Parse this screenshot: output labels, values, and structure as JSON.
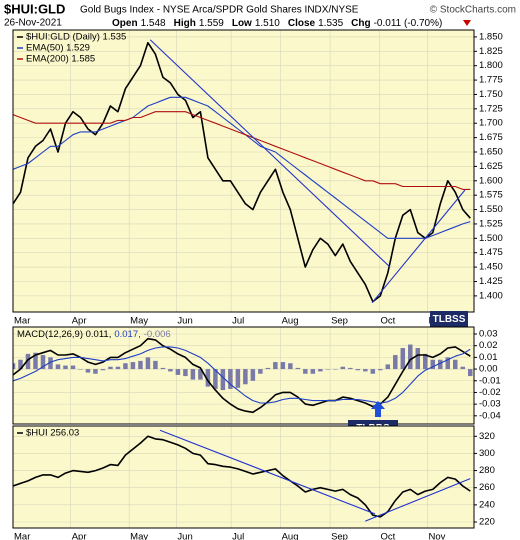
{
  "header": {
    "symbol": "$HUI:GLD",
    "description": "Gold Bugs Index - NYSE Arca/SPDR Gold Shares INDX/NYSE",
    "source": "© StockCharts.com",
    "date": "26-Nov-2021",
    "quote": [
      {
        "label": "Open",
        "value": "1.548"
      },
      {
        "label": "High",
        "value": "1.559"
      },
      {
        "label": "Low",
        "value": "1.510"
      },
      {
        "label": "Close",
        "value": "1.535"
      },
      {
        "label": "Chg",
        "value": "-0.011 (-0.70%)"
      }
    ]
  },
  "chart_data": [
    {
      "type": "line",
      "background": "#fbf8cc",
      "grid": true,
      "x": [
        0,
        1,
        2,
        3,
        4,
        5,
        6,
        7,
        8,
        9,
        10,
        11,
        12,
        13,
        14,
        15,
        16,
        17,
        18,
        19,
        20,
        21,
        22,
        23,
        24,
        25,
        26,
        27,
        28,
        29,
        30,
        31,
        32,
        33,
        34,
        35,
        36,
        37,
        38,
        39,
        40,
        41,
        42,
        43,
        44,
        45,
        46,
        47,
        48,
        49,
        50,
        51,
        52,
        53,
        54,
        55,
        56,
        57,
        58,
        59,
        60,
        61
      ],
      "xlim": [
        0,
        61.5
      ],
      "xticks": [
        {
          "value": 0,
          "label": "Mar"
        },
        {
          "value": 7.7,
          "label": "Apr"
        },
        {
          "value": 15.5,
          "label": "May"
        },
        {
          "value": 21.8,
          "label": "Jun"
        },
        {
          "value": 29.1,
          "label": "Jul"
        },
        {
          "value": 35.7,
          "label": "Aug"
        },
        {
          "value": 42.3,
          "label": "Sep"
        },
        {
          "value": 48.9,
          "label": "Oct"
        },
        {
          "value": 55.3,
          "label": "Nov"
        }
      ],
      "ylim": [
        1.372,
        1.862
      ],
      "yticks": [
        {
          "value": 1.4,
          "label": "1.400"
        },
        {
          "value": 1.425,
          "label": "1.425"
        },
        {
          "value": 1.45,
          "label": "1.450"
        },
        {
          "value": 1.475,
          "label": "1.475"
        },
        {
          "value": 1.5,
          "label": "1.500"
        },
        {
          "value": 1.525,
          "label": "1.525"
        },
        {
          "value": 1.55,
          "label": "1.550"
        },
        {
          "value": 1.575,
          "label": "1.575"
        },
        {
          "value": 1.6,
          "label": "1.600"
        },
        {
          "value": 1.625,
          "label": "1.625"
        },
        {
          "value": 1.65,
          "label": "1.650"
        },
        {
          "value": 1.675,
          "label": "1.675"
        },
        {
          "value": 1.7,
          "label": "1.700"
        },
        {
          "value": 1.725,
          "label": "1.725"
        },
        {
          "value": 1.75,
          "label": "1.750"
        },
        {
          "value": 1.775,
          "label": "1.775"
        },
        {
          "value": 1.8,
          "label": "1.800"
        },
        {
          "value": 1.825,
          "label": "1.825"
        },
        {
          "value": 1.85,
          "label": "1.850"
        }
      ],
      "series": [
        {
          "name": "$HUI:GLD (Daily) 1.535",
          "color": "#000000",
          "values": [
            1.56,
            1.58,
            1.64,
            1.66,
            1.67,
            1.69,
            1.65,
            1.7,
            1.72,
            1.71,
            1.69,
            1.68,
            1.7,
            1.73,
            1.72,
            1.76,
            1.78,
            1.8,
            1.84,
            1.82,
            1.78,
            1.77,
            1.75,
            1.74,
            1.71,
            1.72,
            1.64,
            1.62,
            1.6,
            1.6,
            1.58,
            1.56,
            1.55,
            1.58,
            1.6,
            1.62,
            1.58,
            1.55,
            1.5,
            1.45,
            1.48,
            1.5,
            1.49,
            1.47,
            1.49,
            1.46,
            1.44,
            1.42,
            1.39,
            1.4,
            1.44,
            1.5,
            1.54,
            1.55,
            1.51,
            1.5,
            1.51,
            1.56,
            1.6,
            1.58,
            1.55,
            1.535
          ]
        },
        {
          "name": "EMA(50) 1.529",
          "color": "#1f3fc4",
          "values": [
            1.62,
            1.625,
            1.63,
            1.64,
            1.65,
            1.66,
            1.66,
            1.67,
            1.68,
            1.685,
            1.685,
            1.685,
            1.69,
            1.695,
            1.7,
            1.705,
            1.71,
            1.72,
            1.73,
            1.735,
            1.74,
            1.745,
            1.745,
            1.745,
            1.74,
            1.735,
            1.73,
            1.72,
            1.71,
            1.7,
            1.69,
            1.68,
            1.67,
            1.66,
            1.655,
            1.65,
            1.64,
            1.63,
            1.62,
            1.61,
            1.6,
            1.59,
            1.58,
            1.57,
            1.56,
            1.55,
            1.54,
            1.53,
            1.52,
            1.51,
            1.5,
            1.5,
            1.5,
            1.5,
            1.5,
            1.5,
            1.505,
            1.51,
            1.515,
            1.52,
            1.525,
            1.529
          ]
        },
        {
          "name": "EMA(200) 1.585",
          "color": "#b01010",
          "values": [
            1.715,
            1.71,
            1.705,
            1.7,
            1.7,
            1.7,
            1.7,
            1.7,
            1.7,
            1.7,
            1.7,
            1.7,
            1.7,
            1.7,
            1.705,
            1.705,
            1.71,
            1.71,
            1.715,
            1.72,
            1.72,
            1.72,
            1.72,
            1.72,
            1.715,
            1.71,
            1.705,
            1.7,
            1.695,
            1.69,
            1.685,
            1.68,
            1.675,
            1.67,
            1.665,
            1.66,
            1.655,
            1.65,
            1.645,
            1.64,
            1.635,
            1.63,
            1.625,
            1.62,
            1.615,
            1.61,
            1.605,
            1.6,
            1.6,
            1.595,
            1.595,
            1.595,
            1.59,
            1.59,
            1.59,
            1.59,
            1.59,
            1.59,
            1.59,
            1.59,
            1.585,
            1.585
          ]
        }
      ],
      "trendlines": [
        {
          "color": "#2233cc",
          "x": [
            18.3,
            50.3
          ],
          "values": [
            1.845,
            1.45
          ]
        },
        {
          "color": "#2233cc",
          "x": [
            47.9,
            60.3
          ],
          "values": [
            1.388,
            1.584
          ]
        }
      ],
      "annotations": [
        {
          "text": "TLBSS"
        }
      ]
    },
    {
      "type": "macd",
      "background": "#fbf8cc",
      "grid": true,
      "x": [
        0,
        1,
        2,
        3,
        4,
        5,
        6,
        7,
        8,
        9,
        10,
        11,
        12,
        13,
        14,
        15,
        16,
        17,
        18,
        19,
        20,
        21,
        22,
        23,
        24,
        25,
        26,
        27,
        28,
        29,
        30,
        31,
        32,
        33,
        34,
        35,
        36,
        37,
        38,
        39,
        40,
        41,
        42,
        43,
        44,
        45,
        46,
        47,
        48,
        49,
        50,
        51,
        52,
        53,
        54,
        55,
        56,
        57,
        58,
        59,
        60,
        61
      ],
      "xlim": [
        0,
        61.5
      ],
      "xticks": [
        {
          "value": 0,
          "label": "Mar"
        },
        {
          "value": 7.7,
          "label": "Apr"
        },
        {
          "value": 15.5,
          "label": "May"
        },
        {
          "value": 21.8,
          "label": "Jun"
        },
        {
          "value": 29.1,
          "label": "Jul"
        },
        {
          "value": 35.7,
          "label": "Aug"
        },
        {
          "value": 42.3,
          "label": "Sep"
        },
        {
          "value": 48.9,
          "label": "Oct"
        },
        {
          "value": 55.3,
          "label": "Nov"
        }
      ],
      "ylim": [
        -0.047,
        0.036
      ],
      "yticks": [
        {
          "value": -0.04,
          "label": "-0.04"
        },
        {
          "value": -0.03,
          "label": "-0.03"
        },
        {
          "value": -0.02,
          "label": "-0.02"
        },
        {
          "value": -0.01,
          "label": "-0.01"
        },
        {
          "value": 0,
          "label": "0.00"
        },
        {
          "value": 0.01,
          "label": "0.01"
        },
        {
          "value": 0.02,
          "label": "0.02"
        },
        {
          "value": 0.03,
          "label": "0.03"
        }
      ],
      "legend": [
        "MACD(12,26,9) 0.011,",
        "0.017,",
        "-0.006"
      ],
      "series": [
        {
          "kind": "line",
          "color": "#000000",
          "values": [
            -0.005,
            0,
            0.008,
            0.012,
            0.014,
            0.016,
            0.012,
            0.012,
            0.013,
            0.01,
            0.006,
            0.004,
            0.006,
            0.01,
            0.01,
            0.014,
            0.017,
            0.02,
            0.026,
            0.025,
            0.02,
            0.017,
            0.013,
            0.01,
            0.004,
            0.001,
            -0.01,
            -0.018,
            -0.025,
            -0.03,
            -0.034,
            -0.036,
            -0.037,
            -0.033,
            -0.028,
            -0.022,
            -0.02,
            -0.02,
            -0.024,
            -0.03,
            -0.031,
            -0.029,
            -0.027,
            -0.027,
            -0.024,
            -0.025,
            -0.027,
            -0.029,
            -0.032,
            -0.03,
            -0.024,
            -0.013,
            -0.002,
            0.008,
            0.012,
            0.012,
            0.01,
            0.013,
            0.018,
            0.019,
            0.015,
            0.011
          ]
        },
        {
          "kind": "line",
          "color": "#1f3fc4",
          "values": [
            -0.01,
            -0.008,
            -0.005,
            -0.002,
            0.002,
            0.006,
            0.008,
            0.009,
            0.01,
            0.01,
            0.009,
            0.008,
            0.007,
            0.008,
            0.008,
            0.009,
            0.011,
            0.013,
            0.016,
            0.018,
            0.019,
            0.019,
            0.018,
            0.016,
            0.013,
            0.01,
            0.005,
            -0.001,
            -0.007,
            -0.013,
            -0.018,
            -0.023,
            -0.027,
            -0.029,
            -0.029,
            -0.028,
            -0.026,
            -0.025,
            -0.025,
            -0.026,
            -0.027,
            -0.027,
            -0.027,
            -0.027,
            -0.026,
            -0.026,
            -0.026,
            -0.027,
            -0.028,
            -0.029,
            -0.028,
            -0.025,
            -0.02,
            -0.013,
            -0.006,
            -0.001,
            0.002,
            0.005,
            0.008,
            0.011,
            0.013,
            0.017
          ]
        },
        {
          "kind": "histogram",
          "color": "#7a7aa8",
          "values": [
            0.005,
            0.008,
            0.013,
            0.014,
            0.012,
            0.01,
            0.004,
            0.003,
            0.003,
            0,
            -0.003,
            -0.004,
            -0.001,
            0.002,
            0.002,
            0.005,
            0.006,
            0.007,
            0.01,
            0.007,
            0.001,
            -0.002,
            -0.005,
            -0.006,
            -0.009,
            -0.009,
            -0.015,
            -0.017,
            -0.018,
            -0.017,
            -0.016,
            -0.013,
            -0.01,
            -0.004,
            0.001,
            0.006,
            0.006,
            0.005,
            0.001,
            -0.004,
            -0.004,
            -0.002,
            0,
            0,
            0.002,
            0.001,
            -0.001,
            -0.002,
            -0.004,
            -0.001,
            0.004,
            0.012,
            0.018,
            0.021,
            0.018,
            0.013,
            0.008,
            0.008,
            0.01,
            0.008,
            0.002,
            -0.006
          ]
        }
      ],
      "annotations": [
        {
          "text": "TLBBS"
        }
      ]
    },
    {
      "type": "line",
      "background": "#fbf8cc",
      "grid": true,
      "x": [
        0,
        1,
        2,
        3,
        4,
        5,
        6,
        7,
        8,
        9,
        10,
        11,
        12,
        13,
        14,
        15,
        16,
        17,
        18,
        19,
        20,
        21,
        22,
        23,
        24,
        25,
        26,
        27,
        28,
        29,
        30,
        31,
        32,
        33,
        34,
        35,
        36,
        37,
        38,
        39,
        40,
        41,
        42,
        43,
        44,
        45,
        46,
        47,
        48,
        49,
        50,
        51,
        52,
        53,
        54,
        55,
        56,
        57,
        58,
        59,
        60,
        61
      ],
      "xlim": [
        0,
        61.5
      ],
      "xticks": [
        {
          "value": 0,
          "label": "Mar"
        },
        {
          "value": 7.7,
          "label": "Apr"
        },
        {
          "value": 15.5,
          "label": "May"
        },
        {
          "value": 21.8,
          "label": "Jun"
        },
        {
          "value": 29.1,
          "label": "Jul"
        },
        {
          "value": 35.7,
          "label": "Aug"
        },
        {
          "value": 42.3,
          "label": "Sep"
        },
        {
          "value": 48.9,
          "label": "Oct"
        },
        {
          "value": 55.3,
          "label": "Nov"
        }
      ],
      "ylim": [
        213,
        332
      ],
      "yticks": [
        220,
        240,
        260,
        280,
        300,
        320
      ],
      "series": [
        {
          "name": "$HUI 256.03",
          "color": "#000000",
          "values": [
            262,
            265,
            268,
            272,
            275,
            275,
            272,
            277,
            280,
            279,
            278,
            280,
            283,
            287,
            286,
            298,
            305,
            312,
            320,
            317,
            316,
            313,
            310,
            306,
            300,
            298,
            288,
            287,
            285,
            284,
            282,
            279,
            276,
            278,
            280,
            282,
            274,
            268,
            262,
            255,
            258,
            260,
            258,
            256,
            258,
            252,
            248,
            240,
            228,
            226,
            232,
            245,
            255,
            258,
            252,
            256,
            258,
            266,
            272,
            270,
            262,
            256.03
          ]
        }
      ],
      "trendlines": [
        {
          "color": "#2233cc",
          "x": [
            19.6,
            48.3
          ],
          "values": [
            327,
            229.4
          ]
        },
        {
          "color": "#2233cc",
          "x": [
            47,
            61
          ],
          "values": [
            221,
            270.6
          ]
        }
      ]
    }
  ]
}
